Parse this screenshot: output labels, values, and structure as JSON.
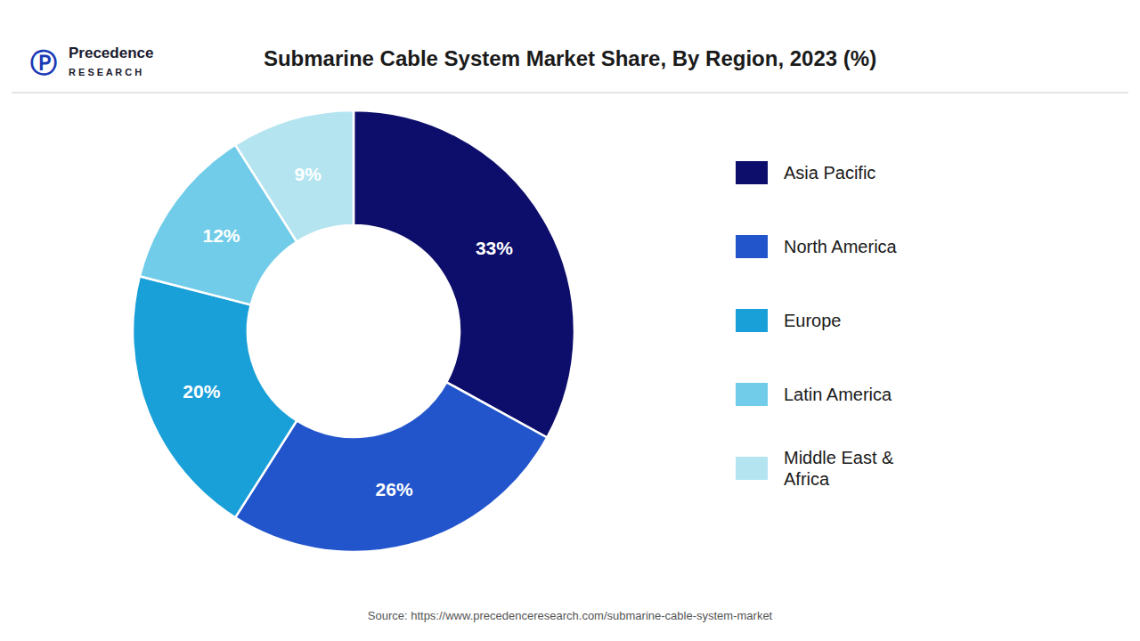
{
  "chart_data": {
    "type": "pie",
    "title": "Submarine Cable System Market Share, By Region, 2023 (%)",
    "categories": [
      "Asia Pacific",
      "North America",
      "Europe",
      "Latin America",
      "Middle East &\nAfrica"
    ],
    "values": [
      33,
      26,
      20,
      12,
      9
    ],
    "value_labels": [
      "33%",
      "26%",
      "20%",
      "12%",
      "9%"
    ],
    "data_labels": true,
    "colors": [
      "#0d0d6b",
      "#2255cc",
      "#1aa0d8",
      "#70cce8",
      "#b3e4f0"
    ],
    "legend": "right",
    "annotations": [
      "Source: https://www.precedenceresearch.com/submarine-cable-system-market",
      "Ⓟ",
      "Precedence",
      "R E S E A R C H"
    ]
  }
}
